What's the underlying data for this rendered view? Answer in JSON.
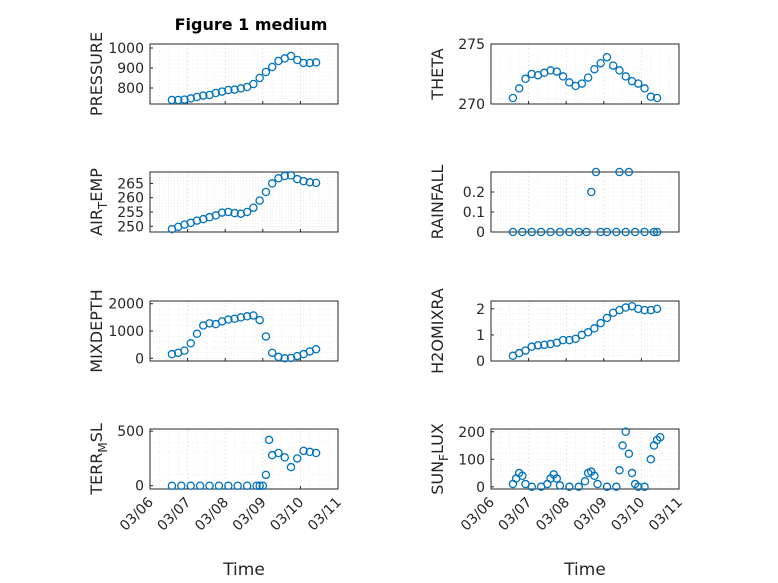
{
  "figure": {
    "title": "Figure 1 medium",
    "marker_color": "#0072BD"
  },
  "x_ticks": [
    "03/06",
    "03/07",
    "03/08",
    "03/09",
    "03/10",
    "03/11"
  ],
  "chart_data": [
    {
      "type": "scatter",
      "ylabel": "PRESSURE",
      "ylabel_sub": "",
      "ylabel_tail": "",
      "xlabel": "",
      "x_range": [
        "03/06",
        "03/11"
      ],
      "ylim": [
        720,
        1020
      ],
      "yticks": [
        800,
        900,
        1000
      ],
      "grid": true,
      "x": [
        "03/06 14:00",
        "03/06 18:00",
        "03/06 22:00",
        "03/07 02:00",
        "03/07 06:00",
        "03/07 10:00",
        "03/07 14:00",
        "03/07 18:00",
        "03/07 22:00",
        "03/08 02:00",
        "03/08 06:00",
        "03/08 10:00",
        "03/08 14:00",
        "03/08 18:00",
        "03/08 22:00",
        "03/09 02:00",
        "03/09 06:00",
        "03/09 10:00",
        "03/09 14:00",
        "03/09 18:00",
        "03/09 22:00",
        "03/10 02:00",
        "03/10 06:00",
        "03/10 10:00"
      ],
      "values": [
        740,
        740,
        742,
        748,
        755,
        762,
        765,
        775,
        782,
        790,
        792,
        798,
        805,
        820,
        850,
        880,
        905,
        935,
        948,
        960,
        940,
        925,
        925,
        928
      ]
    },
    {
      "type": "scatter",
      "ylabel": "THETA",
      "ylabel_sub": "",
      "ylabel_tail": "",
      "xlabel": "",
      "x_range": [
        "03/06",
        "03/11"
      ],
      "ylim": [
        270,
        275
      ],
      "yticks": [
        270,
        275
      ],
      "grid": true,
      "x": [
        "03/06 14:00",
        "03/06 18:00",
        "03/06 22:00",
        "03/07 02:00",
        "03/07 06:00",
        "03/07 10:00",
        "03/07 14:00",
        "03/07 18:00",
        "03/07 22:00",
        "03/08 02:00",
        "03/08 06:00",
        "03/08 10:00",
        "03/08 14:00",
        "03/08 18:00",
        "03/08 22:00",
        "03/09 02:00",
        "03/09 06:00",
        "03/09 10:00",
        "03/09 14:00",
        "03/09 18:00",
        "03/09 22:00",
        "03/10 02:00",
        "03/10 06:00",
        "03/10 10:00"
      ],
      "values": [
        270.5,
        271.3,
        272.1,
        272.5,
        272.4,
        272.6,
        272.8,
        272.7,
        272.3,
        271.8,
        271.5,
        271.7,
        272.2,
        272.9,
        273.4,
        273.9,
        273.2,
        272.8,
        272.3,
        271.9,
        271.7,
        271.3,
        270.6,
        270.5
      ]
    },
    {
      "type": "scatter",
      "ylabel": "AIR",
      "ylabel_sub": "T",
      "ylabel_tail": "EMP",
      "xlabel": "",
      "x_range": [
        "03/06",
        "03/11"
      ],
      "ylim": [
        248,
        269
      ],
      "yticks": [
        250,
        255,
        260,
        265
      ],
      "grid": true,
      "x": [
        "03/06 14:00",
        "03/06 18:00",
        "03/06 22:00",
        "03/07 02:00",
        "03/07 06:00",
        "03/07 10:00",
        "03/07 14:00",
        "03/07 18:00",
        "03/07 22:00",
        "03/08 02:00",
        "03/08 06:00",
        "03/08 10:00",
        "03/08 14:00",
        "03/08 18:00",
        "03/08 22:00",
        "03/09 02:00",
        "03/09 06:00",
        "03/09 10:00",
        "03/09 14:00",
        "03/09 18:00",
        "03/09 22:00",
        "03/10 02:00",
        "03/10 06:00",
        "03/10 10:00"
      ],
      "values": [
        249,
        249.8,
        250.6,
        251.2,
        252,
        252.5,
        253.2,
        253.8,
        254.8,
        255,
        254.6,
        254.4,
        255,
        256.5,
        259,
        262,
        265,
        266.8,
        267.6,
        267.8,
        266.5,
        265.8,
        265.4,
        265.2
      ]
    },
    {
      "type": "scatter",
      "ylabel": "RAINFALL",
      "ylabel_sub": "",
      "ylabel_tail": "",
      "xlabel": "",
      "x_range": [
        "03/06",
        "03/11"
      ],
      "ylim": [
        0,
        0.3
      ],
      "yticks": [
        0,
        0.1,
        0.2
      ],
      "grid": true,
      "x": [
        "03/06 14:00",
        "03/06 20:00",
        "03/07 02:00",
        "03/07 08:00",
        "03/07 14:00",
        "03/07 20:00",
        "03/08 02:00",
        "03/08 08:00",
        "03/08 13:00",
        "03/08 16:00",
        "03/08 19:00",
        "03/08 22:00",
        "03/09 02:00",
        "03/09 08:00",
        "03/09 10:00",
        "03/09 14:00",
        "03/09 16:00",
        "03/09 20:00",
        "03/10 02:00",
        "03/10 08:00",
        "03/10 10:00"
      ],
      "values": [
        0,
        0,
        0,
        0,
        0,
        0,
        0,
        0,
        0,
        0.2,
        0.3,
        0,
        0,
        0,
        0.3,
        0,
        0.3,
        0,
        0,
        0,
        0
      ]
    },
    {
      "type": "scatter",
      "ylabel": "MIXDEPTH",
      "ylabel_sub": "",
      "ylabel_tail": "",
      "xlabel": "",
      "x_range": [
        "03/06",
        "03/11"
      ],
      "ylim": [
        -100,
        2100
      ],
      "yticks": [
        0,
        1000,
        2000
      ],
      "grid": true,
      "x": [
        "03/06 14:00",
        "03/06 18:00",
        "03/06 22:00",
        "03/07 02:00",
        "03/07 06:00",
        "03/07 10:00",
        "03/07 14:00",
        "03/07 18:00",
        "03/07 22:00",
        "03/08 02:00",
        "03/08 06:00",
        "03/08 10:00",
        "03/08 14:00",
        "03/08 18:00",
        "03/08 22:00",
        "03/09 02:00",
        "03/09 06:00",
        "03/09 10:00",
        "03/09 14:00",
        "03/09 18:00",
        "03/09 22:00",
        "03/10 02:00",
        "03/10 06:00",
        "03/10 10:00"
      ],
      "values": [
        150,
        200,
        280,
        550,
        900,
        1200,
        1280,
        1250,
        1350,
        1420,
        1450,
        1500,
        1540,
        1570,
        1400,
        800,
        200,
        50,
        0,
        10,
        80,
        150,
        250,
        330
      ]
    },
    {
      "type": "scatter",
      "ylabel": "H2OMIXRA",
      "ylabel_sub": "",
      "ylabel_tail": "",
      "xlabel": "",
      "x_range": [
        "03/06",
        "03/11"
      ],
      "ylim": [
        0,
        2.3
      ],
      "yticks": [
        0,
        1,
        2
      ],
      "grid": true,
      "x": [
        "03/06 14:00",
        "03/06 18:00",
        "03/06 22:00",
        "03/07 02:00",
        "03/07 06:00",
        "03/07 10:00",
        "03/07 14:00",
        "03/07 18:00",
        "03/07 22:00",
        "03/08 02:00",
        "03/08 06:00",
        "03/08 10:00",
        "03/08 14:00",
        "03/08 18:00",
        "03/08 22:00",
        "03/09 02:00",
        "03/09 06:00",
        "03/09 10:00",
        "03/09 14:00",
        "03/09 18:00",
        "03/09 22:00",
        "03/10 02:00",
        "03/10 06:00",
        "03/10 10:00"
      ],
      "values": [
        0.2,
        0.3,
        0.4,
        0.55,
        0.6,
        0.62,
        0.65,
        0.7,
        0.8,
        0.8,
        0.85,
        1.0,
        1.1,
        1.25,
        1.45,
        1.65,
        1.85,
        1.95,
        2.05,
        2.1,
        2.0,
        1.95,
        1.95,
        2.0
      ]
    },
    {
      "type": "scatter",
      "ylabel": "TERR",
      "ylabel_sub": "M",
      "ylabel_tail": "SL",
      "xlabel": "Time",
      "x_range": [
        "03/06",
        "03/11"
      ],
      "ylim": [
        -30,
        520
      ],
      "yticks": [
        0,
        500
      ],
      "grid": true,
      "x": [
        "03/06 14:00",
        "03/06 20:00",
        "03/07 02:00",
        "03/07 08:00",
        "03/07 14:00",
        "03/07 20:00",
        "03/08 02:00",
        "03/08 08:00",
        "03/08 14:00",
        "03/08 20:00",
        "03/08 22:00",
        "03/09 00:00",
        "03/09 02:00",
        "03/09 04:00",
        "03/09 06:00",
        "03/09 10:00",
        "03/09 14:00",
        "03/09 18:00",
        "03/09 22:00",
        "03/10 02:00",
        "03/10 06:00",
        "03/10 10:00"
      ],
      "values": [
        0,
        0,
        0,
        0,
        0,
        0,
        0,
        0,
        0,
        0,
        0,
        0,
        100,
        420,
        280,
        300,
        260,
        170,
        250,
        320,
        310,
        300
      ]
    },
    {
      "type": "scatter",
      "ylabel": "SUN",
      "ylabel_sub": "F",
      "ylabel_tail": "LUX",
      "xlabel": "Time",
      "x_range": [
        "03/06",
        "03/11"
      ],
      "ylim": [
        -8,
        210
      ],
      "yticks": [
        0,
        100,
        200
      ],
      "grid": true,
      "x": [
        "03/06 14:00",
        "03/06 16:00",
        "03/06 18:00",
        "03/06 20:00",
        "03/06 22:00",
        "03/07 02:00",
        "03/07 08:00",
        "03/07 12:00",
        "03/07 14:00",
        "03/07 16:00",
        "03/07 18:00",
        "03/07 20:00",
        "03/08 02:00",
        "03/08 08:00",
        "03/08 12:00",
        "03/08 14:00",
        "03/08 16:00",
        "03/08 18:00",
        "03/08 20:00",
        "03/09 02:00",
        "03/09 08:00",
        "03/09 10:00",
        "03/09 12:00",
        "03/09 14:00",
        "03/09 16:00",
        "03/09 18:00",
        "03/09 20:00",
        "03/09 22:00",
        "03/10 02:00",
        "03/10 06:00",
        "03/10 08:00",
        "03/10 10:00",
        "03/10 12:00"
      ],
      "values": [
        10,
        30,
        50,
        40,
        10,
        0,
        0,
        10,
        30,
        45,
        30,
        5,
        0,
        0,
        20,
        50,
        55,
        40,
        10,
        0,
        0,
        60,
        150,
        200,
        120,
        50,
        10,
        0,
        0,
        100,
        150,
        170,
        180
      ]
    }
  ]
}
